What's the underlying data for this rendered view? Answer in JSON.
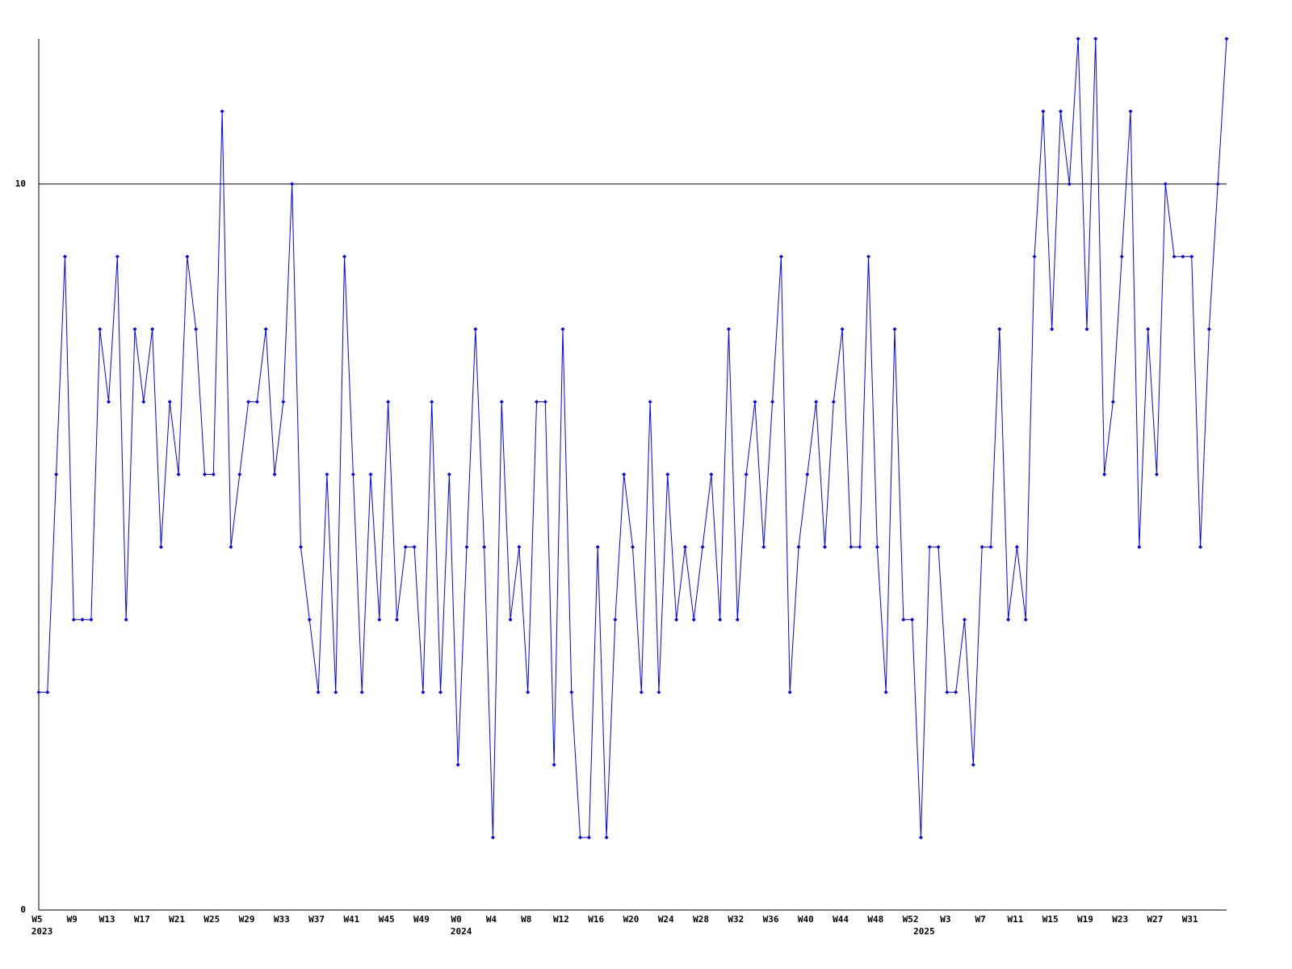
{
  "chart_data": {
    "type": "line",
    "categories": [
      "W5",
      null,
      null,
      null,
      "W9",
      null,
      null,
      null,
      "W13",
      null,
      null,
      null,
      "W17",
      null,
      null,
      null,
      "W21",
      null,
      null,
      null,
      "W25",
      null,
      null,
      null,
      "W29",
      null,
      null,
      null,
      "W33",
      null,
      null,
      null,
      "W37",
      null,
      null,
      null,
      "W41",
      null,
      null,
      null,
      "W45",
      null,
      null,
      null,
      "W49",
      null,
      null,
      null,
      "W0",
      null,
      null,
      null,
      "W4",
      null,
      null,
      null,
      "W8",
      null,
      null,
      null,
      "W12",
      null,
      null,
      null,
      "W16",
      null,
      null,
      null,
      "W20",
      null,
      null,
      null,
      "W24",
      null,
      null,
      null,
      "W28",
      null,
      null,
      null,
      "W32",
      null,
      null,
      null,
      "W36",
      null,
      null,
      null,
      "W40",
      null,
      null,
      null,
      "W44",
      null,
      null,
      null,
      "W48",
      null,
      null,
      null,
      "W52",
      null,
      null,
      null,
      "W3",
      null,
      null,
      null,
      "W7",
      null,
      null,
      null,
      "W11",
      null,
      null,
      null,
      "W15",
      null,
      null,
      null,
      "W19",
      null,
      null,
      null,
      "W23",
      null,
      null,
      null,
      "W27",
      null,
      null,
      null,
      "W31",
      null,
      null,
      null,
      null
    ],
    "years": [
      "2023",
      null,
      null,
      null,
      null,
      null,
      null,
      null,
      null,
      null,
      null,
      null,
      null,
      null,
      null,
      null,
      null,
      null,
      null,
      null,
      null,
      null,
      null,
      null,
      null,
      null,
      null,
      null,
      null,
      null,
      null,
      null,
      null,
      null,
      null,
      null,
      null,
      null,
      null,
      null,
      null,
      null,
      null,
      null,
      null,
      null,
      null,
      null,
      "2024",
      null,
      null,
      null,
      null,
      null,
      null,
      null,
      null,
      null,
      null,
      null,
      null,
      null,
      null,
      null,
      null,
      null,
      null,
      null,
      null,
      null,
      null,
      null,
      null,
      null,
      null,
      null,
      null,
      null,
      null,
      null,
      null,
      null,
      null,
      null,
      null,
      null,
      null,
      null,
      null,
      null,
      null,
      null,
      null,
      null,
      null,
      null,
      null,
      null,
      null,
      null,
      null,
      "2025",
      null,
      null,
      null,
      null,
      null,
      null,
      null,
      null,
      null,
      null,
      null,
      null,
      null,
      null,
      null,
      null,
      null,
      null,
      null,
      null,
      null,
      null,
      null,
      null,
      null,
      null,
      null,
      null,
      null,
      null,
      null,
      null,
      null,
      null,
      null
    ],
    "series": [
      {
        "color": "#0000ff",
        "values": [
          3,
          3,
          6,
          9,
          4,
          4,
          4,
          8,
          7,
          9,
          4,
          8,
          7,
          8,
          5,
          7,
          6,
          9,
          8,
          6,
          6,
          11,
          5,
          6,
          7,
          7,
          8,
          6,
          7,
          10,
          5,
          4,
          3,
          6,
          3,
          9,
          6,
          3,
          6,
          4,
          7,
          4,
          5,
          5,
          3,
          7,
          3,
          6,
          2,
          5,
          8,
          5,
          1,
          7,
          4,
          5,
          3,
          7,
          7,
          2,
          8,
          3,
          1,
          1,
          5,
          1,
          4,
          6,
          5,
          3,
          7,
          3,
          6,
          4,
          5,
          4,
          5,
          6,
          4,
          8,
          4,
          6,
          7,
          5,
          7,
          9,
          3,
          5,
          6,
          7,
          5,
          7,
          8,
          5,
          5,
          9,
          5,
          3,
          8,
          4,
          4,
          1,
          5,
          5,
          3,
          3,
          4,
          2,
          5,
          5,
          8,
          4,
          5,
          4,
          9,
          11,
          8,
          11,
          10,
          12,
          8,
          12,
          6,
          7,
          9,
          11,
          5,
          8,
          6,
          10,
          9,
          9,
          9,
          5,
          8,
          10,
          12
        ]
      }
    ],
    "ylim": [
      0,
      12
    ],
    "yticks": [
      0,
      10
    ],
    "grid": true
  }
}
